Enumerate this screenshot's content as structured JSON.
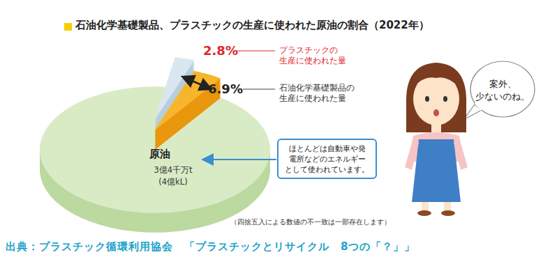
{
  "chart_data": {
    "type": "pie",
    "title": "石油化学基礎製品、プラスチックの生産に使われた原油の割合（2022年）",
    "whole": {
      "label": "原油",
      "lines": [
        "3億4千万t",
        "(4億kL)"
      ],
      "color": "#d9ebc4",
      "note": [
        "ほとんどは自動車や発",
        "電所などのエネルギー",
        "として使われています。"
      ]
    },
    "slices": [
      {
        "name": [
          "石油化学基礎製品の",
          "生産に使われた量"
        ],
        "value": 6.9,
        "value_label": "6.9%",
        "color": "#f7b52b"
      },
      {
        "name": [
          "プラスチックの",
          "生産に使われた量"
        ],
        "value": 2.8,
        "value_label": "2.8%",
        "color": "#dde9f1"
      }
    ],
    "data_labels": true,
    "footnote": "（四捨五入による数値の不一致は一部存在します）",
    "speech": [
      "案外、",
      "少ないのね。"
    ],
    "source": "出典：プラスチック循環利用協会　「プラスチックとリサイクル　8つの「？」」"
  }
}
